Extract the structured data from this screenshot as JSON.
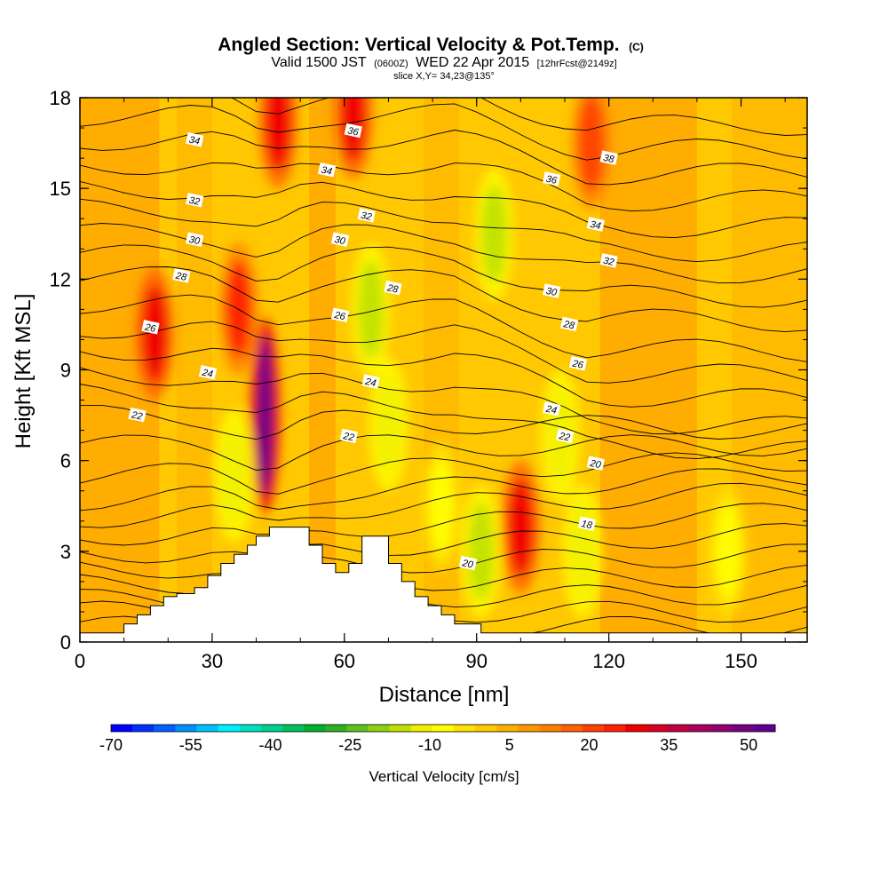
{
  "title": {
    "main": "Angled Section: Vertical Velocity & Pot.Temp.",
    "unit": "(C)",
    "valid_prefix": "Valid 1500 JST",
    "valid_utc": "(0600Z)",
    "valid_date": "WED 22 Apr 2015",
    "forecast": "[12hrFcst@2149z]",
    "slice": "slice X,Y= 34,23@135°"
  },
  "chart_data": {
    "type": "heatmap",
    "xlabel": "Distance [nm]",
    "ylabel": "Height [Kft MSL]",
    "xlim": [
      0,
      165
    ],
    "ylim": [
      0,
      18
    ],
    "x_ticks": [
      0,
      30,
      60,
      90,
      120,
      150
    ],
    "y_ticks": [
      0,
      3,
      6,
      9,
      12,
      15,
      18
    ],
    "colorbar": {
      "label": "Vertical Velocity [cm/s]",
      "tick_labels": [
        "-70",
        "-55",
        "-40",
        "-25",
        "-10",
        "5",
        "20",
        "35",
        "50"
      ],
      "tick_values": [
        -70,
        -55,
        -40,
        -25,
        -10,
        5,
        20,
        35,
        50
      ],
      "range": [
        -70,
        55
      ],
      "colors": [
        "#0000ff",
        "#0030ff",
        "#0060ff",
        "#0090ff",
        "#00c0ff",
        "#00f0ff",
        "#00e0c0",
        "#00d090",
        "#00c060",
        "#00b030",
        "#30b020",
        "#60c020",
        "#90d010",
        "#c0e000",
        "#f0f000",
        "#ffff00",
        "#ffe000",
        "#ffc800",
        "#ffb000",
        "#ff9800",
        "#ff8000",
        "#ff6000",
        "#ff4000",
        "#ff2000",
        "#f00000",
        "#d80020",
        "#c00040",
        "#a80060",
        "#900070",
        "#780080",
        "#600090"
      ]
    },
    "terrain": [
      [
        0,
        0.3
      ],
      [
        10,
        0.3
      ],
      [
        10,
        0.6
      ],
      [
        13,
        0.6
      ],
      [
        13,
        0.9
      ],
      [
        16,
        0.9
      ],
      [
        16,
        1.2
      ],
      [
        19,
        1.2
      ],
      [
        19,
        1.5
      ],
      [
        22,
        1.5
      ],
      [
        22,
        1.6
      ],
      [
        26,
        1.6
      ],
      [
        26,
        1.8
      ],
      [
        29,
        1.8
      ],
      [
        29,
        2.2
      ],
      [
        32,
        2.2
      ],
      [
        32,
        2.6
      ],
      [
        35,
        2.6
      ],
      [
        35,
        2.9
      ],
      [
        38,
        2.9
      ],
      [
        38,
        3.2
      ],
      [
        40,
        3.2
      ],
      [
        40,
        3.5
      ],
      [
        43,
        3.5
      ],
      [
        43,
        3.8
      ],
      [
        52,
        3.8
      ],
      [
        52,
        3.2
      ],
      [
        55,
        3.2
      ],
      [
        55,
        2.6
      ],
      [
        58,
        2.6
      ],
      [
        58,
        2.3
      ],
      [
        61,
        2.3
      ],
      [
        61,
        2.6
      ],
      [
        64,
        2.6
      ],
      [
        64,
        3.5
      ],
      [
        70,
        3.5
      ],
      [
        70,
        2.6
      ],
      [
        73,
        2.6
      ],
      [
        73,
        2.0
      ],
      [
        76,
        2.0
      ],
      [
        76,
        1.5
      ],
      [
        79,
        1.5
      ],
      [
        79,
        1.2
      ],
      [
        82,
        1.2
      ],
      [
        82,
        0.9
      ],
      [
        85,
        0.9
      ],
      [
        85,
        0.6
      ],
      [
        91,
        0.6
      ],
      [
        91,
        0.3
      ],
      [
        165,
        0.3
      ]
    ],
    "vertical_velocity_features": [
      {
        "x": 17,
        "y": 10.2,
        "value": 28
      },
      {
        "x": 36,
        "y": 11.0,
        "value": 25
      },
      {
        "x": 42,
        "y": 7.5,
        "value": 55
      },
      {
        "x": 45,
        "y": 17.2,
        "value": 30
      },
      {
        "x": 62,
        "y": 17.5,
        "value": 30
      },
      {
        "x": 100,
        "y": 3.8,
        "value": 30
      },
      {
        "x": 116,
        "y": 16.5,
        "value": 20
      },
      {
        "x": 66,
        "y": 11.0,
        "value": -15
      },
      {
        "x": 94,
        "y": 13.5,
        "value": -15
      },
      {
        "x": 91,
        "y": 3.0,
        "value": -15
      },
      {
        "x": 114,
        "y": 3.0,
        "value": -12
      },
      {
        "x": 109,
        "y": 6.8,
        "value": -12
      },
      {
        "x": 70,
        "y": 7.2,
        "value": -12
      },
      {
        "x": 35,
        "y": 5.5,
        "value": -10
      },
      {
        "x": 147,
        "y": 3.0,
        "value": -8
      },
      {
        "x": 82,
        "y": 4.5,
        "value": -8
      }
    ],
    "potential_temperature_labels": [
      {
        "text": "34",
        "x": 26,
        "y": 16.6
      },
      {
        "text": "32",
        "x": 26,
        "y": 14.6
      },
      {
        "text": "30",
        "x": 26,
        "y": 13.3
      },
      {
        "text": "28",
        "x": 23,
        "y": 12.1
      },
      {
        "text": "26",
        "x": 16,
        "y": 10.4
      },
      {
        "text": "24",
        "x": 29,
        "y": 8.9
      },
      {
        "text": "22",
        "x": 13,
        "y": 7.5
      },
      {
        "text": "36",
        "x": 62,
        "y": 16.9
      },
      {
        "text": "34",
        "x": 56,
        "y": 15.6
      },
      {
        "text": "32",
        "x": 65,
        "y": 14.1
      },
      {
        "text": "30",
        "x": 59,
        "y": 13.3
      },
      {
        "text": "28",
        "x": 71,
        "y": 11.7
      },
      {
        "text": "26",
        "x": 59,
        "y": 10.8
      },
      {
        "text": "24",
        "x": 66,
        "y": 8.6
      },
      {
        "text": "22",
        "x": 61,
        "y": 6.8
      },
      {
        "text": "36",
        "x": 107,
        "y": 15.3
      },
      {
        "text": "38",
        "x": 120,
        "y": 16.0
      },
      {
        "text": "34",
        "x": 117,
        "y": 13.8
      },
      {
        "text": "32",
        "x": 120,
        "y": 12.6
      },
      {
        "text": "30",
        "x": 107,
        "y": 11.6
      },
      {
        "text": "28",
        "x": 111,
        "y": 10.5
      },
      {
        "text": "26",
        "x": 113,
        "y": 9.2
      },
      {
        "text": "24",
        "x": 107,
        "y": 7.7
      },
      {
        "text": "22",
        "x": 110,
        "y": 6.8
      },
      {
        "text": "20",
        "x": 117,
        "y": 5.9
      },
      {
        "text": "18",
        "x": 115,
        "y": 3.9
      },
      {
        "text": "20",
        "x": 88,
        "y": 2.6
      }
    ]
  }
}
